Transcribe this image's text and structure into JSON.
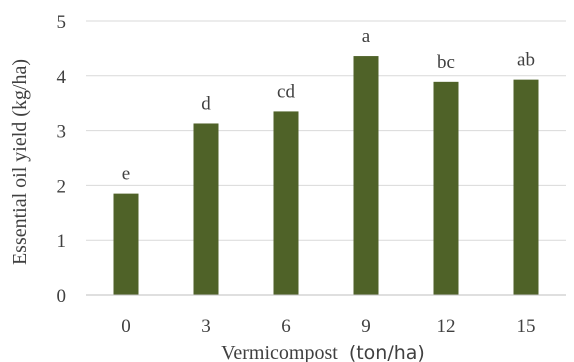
{
  "chart_data": {
    "type": "bar",
    "categories": [
      "0",
      "3",
      "6",
      "9",
      "12",
      "15"
    ],
    "values": [
      1.85,
      3.13,
      3.35,
      4.36,
      3.89,
      3.93
    ],
    "bar_labels": [
      "e",
      "d",
      "cd",
      "a",
      "bc",
      "ab"
    ],
    "xlabel": "Vermicompost",
    "xlabel_unit": "(ton/ha)",
    "ylabel": "Essential oil yield (kg/ha)",
    "ylim": [
      0,
      5
    ],
    "yticks": [
      "0",
      "1",
      "2",
      "3",
      "4",
      "5"
    ],
    "grid": true,
    "colors": {
      "bar": "#4f6228",
      "grid": "#d9d9d9",
      "axis": "#bfbfbf",
      "text": "#404040"
    }
  }
}
